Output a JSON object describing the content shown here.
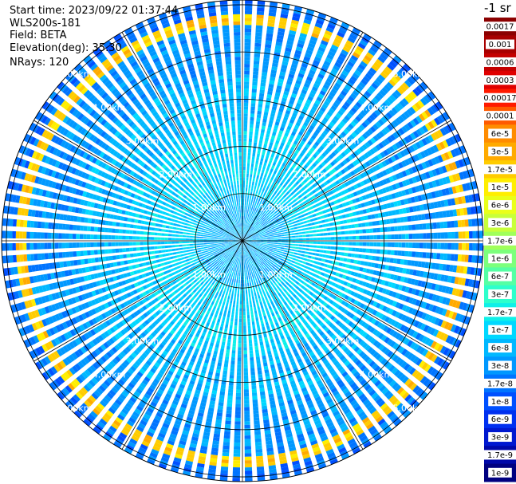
{
  "meta": {
    "start_time": "Start time: 2023/09/22 01:37:44",
    "device": "WLS200s-181",
    "field": "Field: BETA",
    "elevation": "Elevation(deg): 35.30",
    "nrays": "NRays: 120"
  },
  "colorbar": {
    "unit": "-1 sr",
    "levels": [
      {
        "label": "0.0017",
        "color": "#8b0000"
      },
      {
        "label": "0.001",
        "color": "#a80000"
      },
      {
        "label": "0.0006",
        "color": "#c40000"
      },
      {
        "label": "0.0003",
        "color": "#e00000"
      },
      {
        "label": "0.00017",
        "color": "#ff1a00"
      },
      {
        "label": "0.0001",
        "color": "#ff5a00"
      },
      {
        "label": "6e-5",
        "color": "#ff8c00"
      },
      {
        "label": "3e-5",
        "color": "#ffaa00"
      },
      {
        "label": "1.7e-5",
        "color": "#ffcc00"
      },
      {
        "label": "1e-5",
        "color": "#ffee00"
      },
      {
        "label": "6e-6",
        "color": "#eaff1a"
      },
      {
        "label": "3e-6",
        "color": "#c8ff3a"
      },
      {
        "label": "1.7e-6",
        "color": "#a0ff5a"
      },
      {
        "label": "1e-6",
        "color": "#7cff7c"
      },
      {
        "label": "6e-7",
        "color": "#55ffa4"
      },
      {
        "label": "3e-7",
        "color": "#2effcc"
      },
      {
        "label": "1.7e-7",
        "color": "#0ff0e8"
      },
      {
        "label": "1e-7",
        "color": "#00d8ff"
      },
      {
        "label": "6e-8",
        "color": "#00b8ff"
      },
      {
        "label": "3e-8",
        "color": "#0098ff"
      },
      {
        "label": "1.7e-8",
        "color": "#0074ff"
      },
      {
        "label": "1e-8",
        "color": "#0050ff"
      },
      {
        "label": "6e-9",
        "color": "#0030f0"
      },
      {
        "label": "3e-9",
        "color": "#0018d0"
      },
      {
        "label": "1.7e-9",
        "color": "#0008a8"
      },
      {
        "label": "1e-9",
        "color": "#000080"
      }
    ]
  },
  "chart_data": {
    "type": "heatmap",
    "projection": "polar (PPI)",
    "field": "BETA",
    "nrays": 120,
    "range_rings_km": [
      1,
      2,
      3,
      4,
      5
    ],
    "range_ring_labels": [
      "1.00km",
      "2.00km",
      "3.00km",
      "4.00km",
      "5.00km"
    ],
    "spokes_deg": [
      0,
      30,
      60,
      90,
      120,
      150,
      180,
      210,
      240,
      270,
      300,
      330
    ],
    "max_range_km": 5.1,
    "grid": true,
    "radial_profile": [
      {
        "range_km_max": 1.0,
        "dominant_level": "6e-8"
      },
      {
        "range_km_max": 2.5,
        "dominant_level": "1e-7"
      },
      {
        "range_km_max": 3.5,
        "dominant_level": "6e-8"
      },
      {
        "range_km_max": 4.6,
        "dominant_level": "3e-8"
      },
      {
        "range_km_max": 4.8,
        "dominant_level": "1.7e-5"
      },
      {
        "range_km_max": 5.1,
        "dominant_level": "1.7e-8"
      }
    ]
  }
}
